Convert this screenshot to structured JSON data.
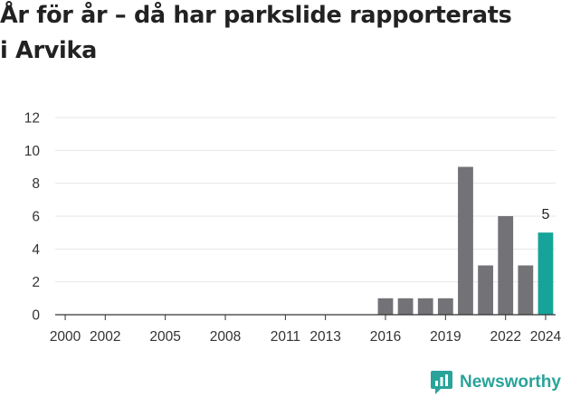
{
  "title_line1": "År för år – då har parkslide rapporterats",
  "title_line2": "i Arvika",
  "brand": "Newsworthy",
  "colors": {
    "bar": "#737277",
    "highlight": "#16a49a",
    "grid": "#e6e6e6",
    "brand": "#2aa39a"
  },
  "chart_data": {
    "type": "bar",
    "title": "År för år – då har parkslide rapporterats i Arvika",
    "x": [
      2000,
      2001,
      2002,
      2003,
      2004,
      2005,
      2006,
      2007,
      2008,
      2009,
      2010,
      2011,
      2012,
      2013,
      2014,
      2015,
      2016,
      2017,
      2018,
      2019,
      2020,
      2021,
      2022,
      2023,
      2024
    ],
    "values": [
      0,
      0,
      0,
      0,
      0,
      0,
      0,
      0,
      0,
      0,
      0,
      0,
      0,
      0,
      0,
      0,
      1,
      1,
      1,
      1,
      9,
      3,
      6,
      3,
      5
    ],
    "x_tick_labels": [
      "2000",
      "2002",
      "2005",
      "2008",
      "2011",
      "2013",
      "2016",
      "2019",
      "2022",
      "2024"
    ],
    "y_ticks": [
      0,
      2,
      4,
      6,
      8,
      10,
      12
    ],
    "ylim": [
      0,
      12
    ],
    "highlight_index": 24,
    "data_labels": [
      {
        "x": 2024,
        "text": "5"
      }
    ],
    "grid": true,
    "xlabel": "",
    "ylabel": ""
  }
}
